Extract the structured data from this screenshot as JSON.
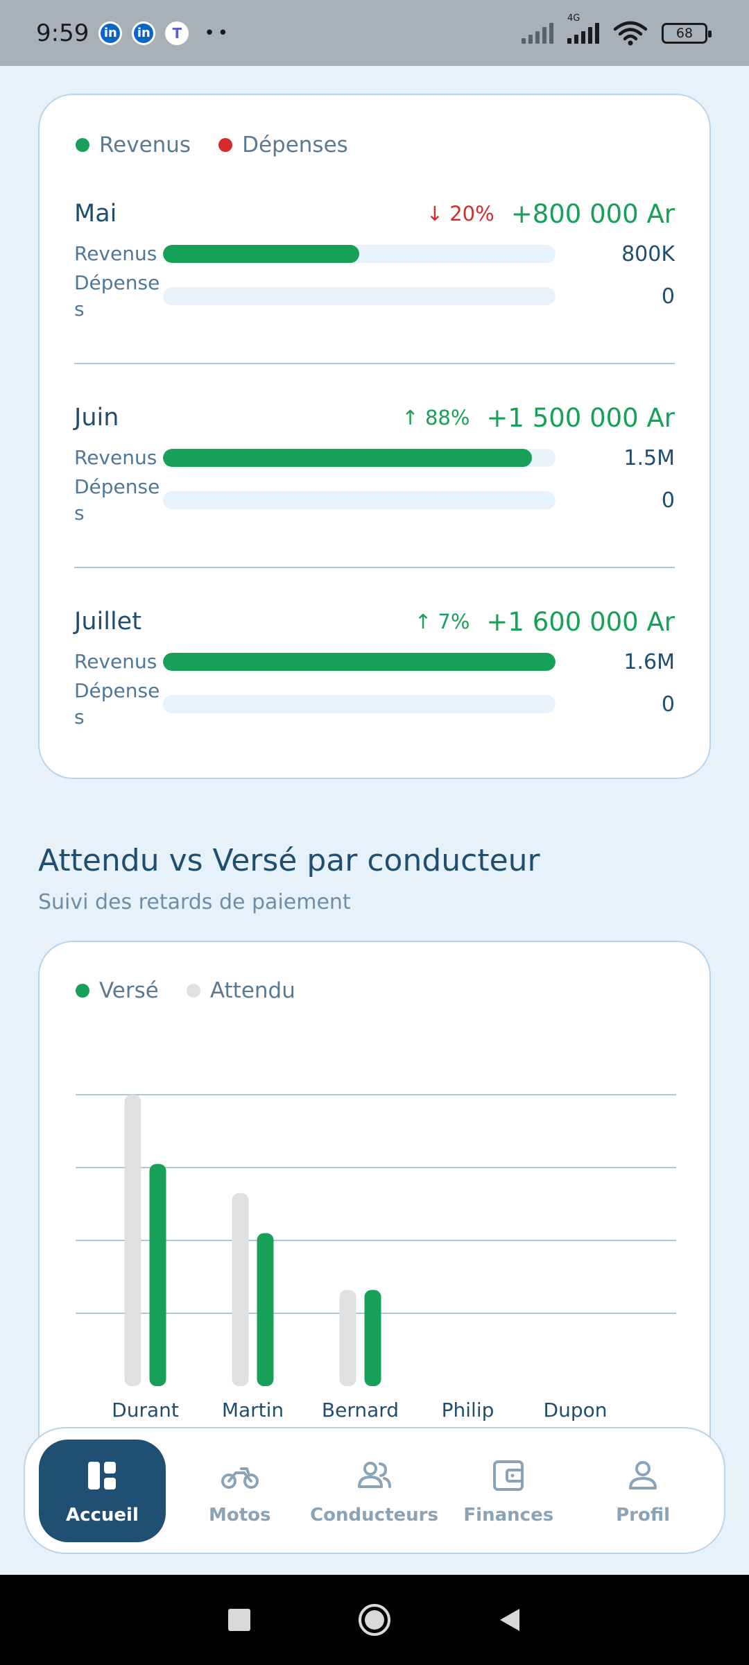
{
  "status_bar": {
    "time": "9:59",
    "network_label": "4G",
    "battery": "68"
  },
  "finance_card": {
    "legend": [
      {
        "label": "Revenus",
        "color": "#17a057"
      },
      {
        "label": "Dépenses",
        "color": "#d62b2b"
      }
    ],
    "months": [
      {
        "name": "Mai",
        "change_arrow": "↓",
        "change_pct": "20%",
        "change_dir": "down",
        "total": "+800 000 Ar",
        "revenue_label": "Revenus",
        "revenue_fraction": 0.5,
        "revenue_value": "800K",
        "expense_label": "Dépenses",
        "expense_fraction": 0,
        "expense_value": "0"
      },
      {
        "name": "Juin",
        "change_arrow": "↑",
        "change_pct": "88%",
        "change_dir": "up",
        "total": "+1 500 000 Ar",
        "revenue_label": "Revenus",
        "revenue_fraction": 0.94,
        "revenue_value": "1.5M",
        "expense_label": "Dépenses",
        "expense_fraction": 0,
        "expense_value": "0"
      },
      {
        "name": "Juillet",
        "change_arrow": "↑",
        "change_pct": "7%",
        "change_dir": "up",
        "total": "+1 600 000 Ar",
        "revenue_label": "Revenus",
        "revenue_fraction": 1.0,
        "revenue_value": "1.6M",
        "expense_label": "Dépenses",
        "expense_fraction": 0,
        "expense_value": "0"
      }
    ]
  },
  "driver_section": {
    "title": "Attendu vs Versé par conducteur",
    "subtitle": "Suivi des retards de paiement"
  },
  "chart_data": {
    "type": "bar",
    "title": "",
    "legend_position": "top-left",
    "grid": true,
    "categories": [
      "Durant",
      "Martin",
      "Bernard",
      "Philip",
      "Dupon"
    ],
    "series": [
      {
        "name": "Attendu",
        "color": "#e0e0e0",
        "values": [
          4.0,
          2.65,
          1.32,
          0,
          0
        ]
      },
      {
        "name": "Versé",
        "color": "#17a057",
        "values": [
          3.05,
          2.1,
          1.32,
          0,
          0
        ]
      }
    ],
    "ylim": [
      0,
      4.0
    ]
  },
  "nav": {
    "items": [
      {
        "label": "Accueil",
        "icon": "dashboard-icon",
        "active": true
      },
      {
        "label": "Motos",
        "icon": "motorcycle-icon",
        "active": false
      },
      {
        "label": "Conducteurs",
        "icon": "users-icon",
        "active": false
      },
      {
        "label": "Finances",
        "icon": "wallet-icon",
        "active": false
      },
      {
        "label": "Profil",
        "icon": "user-icon",
        "active": false
      }
    ]
  }
}
